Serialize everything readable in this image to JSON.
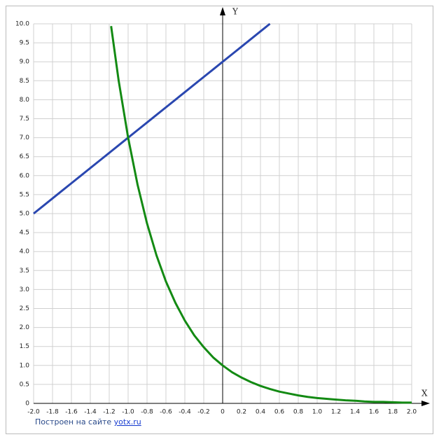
{
  "chart_data": {
    "type": "line",
    "x_label": "X",
    "y_label": "Y",
    "x": [
      -2.0,
      -1.9,
      -1.8,
      -1.7,
      -1.6,
      -1.5,
      -1.4,
      -1.3,
      -1.2,
      -1.18,
      -1.1,
      -1.0,
      -0.9,
      -0.8,
      -0.7,
      -0.6,
      -0.5,
      -0.4,
      -0.3,
      -0.2,
      -0.1,
      0,
      0.1,
      0.2,
      0.3,
      0.4,
      0.5,
      0.6,
      0.7,
      0.8,
      0.9,
      1.0,
      1.1,
      1.2,
      1.3,
      1.4,
      1.5,
      1.6,
      1.7,
      1.8,
      1.9,
      2.0
    ],
    "series": [
      {
        "color": "#2a47b0",
        "values": [
          5,
          5.2,
          5.4,
          5.6,
          5.8,
          6,
          6.2,
          6.4,
          6.6,
          6.64,
          6.8,
          7,
          7.2,
          7.4,
          7.6,
          7.8,
          8,
          8.2,
          8.4,
          8.6,
          8.8,
          9,
          9.2,
          9.4,
          9.6,
          9.8,
          10,
          null,
          null,
          null,
          null,
          null,
          null,
          null,
          null,
          null,
          null,
          null,
          null,
          null,
          null,
          null
        ]
      },
      {
        "color": "#138a13",
        "values": [
          null,
          null,
          null,
          null,
          null,
          null,
          null,
          null,
          null,
          9.94,
          8.5,
          7,
          5.76,
          4.74,
          3.9,
          3.21,
          2.65,
          2.18,
          1.79,
          1.48,
          1.21,
          1,
          0.82,
          0.68,
          0.56,
          0.46,
          0.38,
          0.31,
          0.26,
          0.21,
          0.17,
          0.14,
          0.12,
          0.1,
          0.08,
          0.07,
          0.05,
          0.04,
          0.04,
          0.03,
          0.02,
          0.02
        ]
      }
    ],
    "xlim": [
      -2,
      2
    ],
    "ylim": [
      0,
      10
    ],
    "xticks": [
      {
        "value": -2,
        "label": "-2.0"
      },
      -1.8,
      -1.6,
      -1.4,
      -1.2,
      {
        "value": -1,
        "label": "-1.0"
      },
      -0.8,
      -0.6,
      -0.4,
      -0.2,
      0,
      0.2,
      0.4,
      0.6,
      0.8,
      {
        "value": 1,
        "label": "1.0"
      },
      1.2,
      1.4,
      1.6,
      1.8,
      {
        "value": 2,
        "label": "2.0"
      }
    ],
    "yticks": [
      0,
      0.5,
      {
        "value": 1,
        "label": "1.0"
      },
      1.5,
      {
        "value": 2,
        "label": "2.0"
      },
      2.5,
      {
        "value": 3,
        "label": "3.0"
      },
      3.5,
      {
        "value": 4,
        "label": "4.0"
      },
      4.5,
      {
        "value": 5,
        "label": "5.0"
      },
      5.5,
      {
        "value": 6,
        "label": "6.0"
      },
      6.5,
      {
        "value": 7,
        "label": "7.0"
      },
      7.5,
      {
        "value": 8,
        "label": "8.0"
      },
      8.5,
      {
        "value": 9,
        "label": "9.0"
      },
      9.5,
      {
        "value": 10,
        "label": "10.0"
      }
    ],
    "grid": true,
    "source_text": "Построен на сайте",
    "source_link": "yotx.ru"
  }
}
